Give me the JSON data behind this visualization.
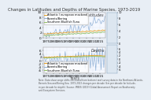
{
  "title": "Changes in Latitudes and Depths of Marine Species, 1973-2019",
  "subtitle_lat": "Latitudes",
  "subtitle_dep": "Depths",
  "xlabel": "Years",
  "years": [
    1973,
    1974,
    1975,
    1976,
    1977,
    1978,
    1979,
    1980,
    1981,
    1982,
    1983,
    1984,
    1985,
    1986,
    1987,
    1988,
    1989,
    1990,
    1991,
    1992,
    1993,
    1994,
    1995,
    1996,
    1997,
    1998,
    1999,
    2000,
    2001,
    2002,
    2003,
    2004,
    2005,
    2006,
    2007,
    2008,
    2009,
    2010,
    2011,
    2012,
    2013,
    2014,
    2015,
    2016,
    2017,
    2018,
    2019
  ],
  "lat_blue": [
    0.5,
    1.2,
    0.3,
    1.8,
    0.8,
    2.2,
    1.0,
    2.5,
    1.5,
    3.0,
    2.0,
    1.2,
    3.0,
    2.2,
    1.5,
    3.5,
    2.8,
    2.0,
    3.2,
    2.5,
    4.0,
    3.0,
    2.2,
    4.5,
    3.5,
    2.8,
    5.0,
    4.0,
    3.2,
    5.5,
    4.5,
    3.8,
    6.0,
    5.0,
    4.2,
    6.5,
    5.5,
    4.8,
    7.0,
    6.0,
    5.5,
    7.5,
    6.5,
    6.0,
    8.0,
    7.5,
    8.2
  ],
  "lat_orange": [
    1.5,
    1.6,
    1.4,
    1.7,
    1.5,
    1.8,
    1.6,
    1.9,
    1.7,
    2.0,
    1.8,
    1.7,
    2.1,
    1.9,
    1.8,
    2.2,
    2.0,
    1.9,
    2.3,
    2.1,
    2.2,
    2.3,
    2.1,
    2.4,
    2.2,
    2.3,
    2.5,
    2.3,
    2.2,
    2.6,
    2.4,
    2.3,
    2.7,
    2.5,
    2.4,
    2.8,
    2.6,
    2.5,
    2.9,
    2.7,
    2.6,
    3.0,
    2.8,
    2.7,
    3.1,
    2.9,
    3.0
  ],
  "lat_green": [
    0.8,
    0.9,
    0.7,
    1.0,
    0.8,
    1.1,
    0.9,
    1.2,
    1.0,
    1.3,
    1.1,
    1.0,
    1.4,
    1.2,
    1.1,
    1.5,
    1.3,
    1.2,
    1.6,
    1.4,
    1.5,
    1.6,
    1.4,
    1.7,
    1.5,
    1.6,
    1.8,
    1.6,
    1.5,
    1.9,
    1.7,
    1.6,
    2.0,
    1.8,
    1.7,
    2.1,
    1.9,
    1.8,
    2.2,
    2.0,
    1.9,
    2.3,
    2.1,
    2.0,
    2.4,
    2.2,
    2.3
  ],
  "dep_blue": [
    0.5,
    -1.0,
    1.5,
    -0.5,
    2.0,
    -1.5,
    1.0,
    -2.0,
    2.5,
    -0.5,
    1.5,
    -2.5,
    3.0,
    -0.5,
    2.0,
    -3.0,
    3.5,
    -1.0,
    2.5,
    -3.5,
    4.0,
    -1.5,
    3.0,
    -4.0,
    4.5,
    -2.0,
    3.5,
    -4.5,
    5.0,
    -2.5,
    4.0,
    -5.0,
    5.5,
    -3.0,
    4.5,
    -5.5,
    6.0,
    -3.5,
    5.0,
    -6.0,
    6.5,
    -4.0,
    5.5,
    -6.5,
    7.0,
    -4.5,
    6.0
  ],
  "dep_orange": [
    2.0,
    1.9,
    2.1,
    1.8,
    2.2,
    1.9,
    2.3,
    2.0,
    2.4,
    2.1,
    2.5,
    2.2,
    2.4,
    2.3,
    2.5,
    2.2,
    2.6,
    2.3,
    2.7,
    2.4,
    2.6,
    2.5,
    2.7,
    2.4,
    2.8,
    2.5,
    2.9,
    2.6,
    2.8,
    2.7,
    3.0,
    2.8,
    2.9,
    2.8,
    3.0,
    2.9,
    3.1,
    3.0,
    2.9,
    3.0,
    3.1,
    2.8,
    3.0,
    2.9,
    2.8,
    2.7,
    2.8
  ],
  "dep_green": [
    1.5,
    1.4,
    1.6,
    1.3,
    1.7,
    1.4,
    1.8,
    1.5,
    1.9,
    1.6,
    2.0,
    1.7,
    1.9,
    1.8,
    2.0,
    1.7,
    2.1,
    1.8,
    2.2,
    1.9,
    2.1,
    2.0,
    2.2,
    1.9,
    2.3,
    2.0,
    2.4,
    2.1,
    2.3,
    2.2,
    2.5,
    2.3,
    2.4,
    2.3,
    2.5,
    2.4,
    2.6,
    2.5,
    2.4,
    2.5,
    2.6,
    2.3,
    2.5,
    2.4,
    2.3,
    2.2,
    2.3
  ],
  "color_blue": "#8aadd4",
  "color_orange": "#e8a020",
  "color_green": "#90c060",
  "legend_labels": [
    "Atlantic / european mackerel",
    "Barents/Bering",
    "Southern Bluefish Tuna"
  ],
  "bg_color": "#e8eef5",
  "plot_bg": "#f5f8ff",
  "right_bg": "#dce6f0",
  "lat_ylim": [
    0,
    10
  ],
  "dep_ylim": [
    -8,
    8
  ],
  "lat_yticks": [
    0,
    2,
    4,
    6,
    8,
    10
  ],
  "dep_yticks": [
    -6,
    -4,
    -2,
    0,
    2,
    4,
    6
  ],
  "xticks": [
    1975,
    1980,
    1985,
    1990,
    1995,
    2000,
    2005,
    2010,
    2015
  ],
  "tick_fontsize": 3.0,
  "label_fontsize": 3.5,
  "title_fontsize": 3.8,
  "legend_fontsize": 2.5,
  "caption1": "Note: Data show range shifts calculated from bottom trawl survey data in the Northeast Atlantic,",
  "caption2": "Barents Sea and Bering Sea. 1973-2013 changes per decade (km per decade for latitude,",
  "caption3": "m per decade for depth). Source: IPBES (2019) Global Assessment Report on Biodiversity",
  "caption4": "and Ecosystem Services."
}
